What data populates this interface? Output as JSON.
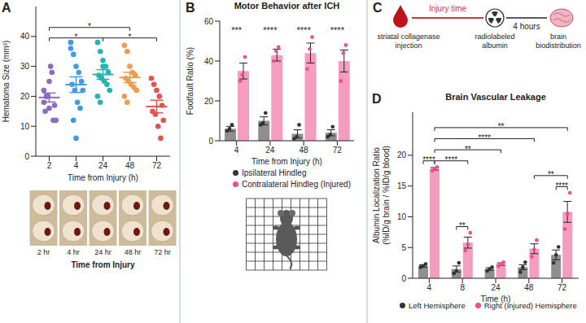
{
  "chart_data": [
    {
      "panel": "A",
      "type": "scatter",
      "y_label": "Hematoma Size (mm³)",
      "x_label": "Time from Injury (h)",
      "categories": [
        "2",
        "4",
        "24",
        "48",
        "72"
      ],
      "colors": [
        "#8b6cc1",
        "#3d9be9",
        "#27b3b3",
        "#f29a4e",
        "#e4534d"
      ],
      "values": [
        [
          22,
          20,
          25,
          28,
          17,
          15,
          20,
          30,
          12,
          12,
          18,
          20,
          16
        ],
        [
          36,
          34,
          30,
          28,
          25,
          24,
          22,
          18,
          16,
          22,
          38,
          12,
          6
        ],
        [
          38,
          35,
          32,
          30,
          28,
          27,
          26,
          25,
          24,
          22,
          20,
          18,
          30
        ],
        [
          37,
          35,
          30,
          28,
          27,
          26,
          25,
          24,
          23,
          22,
          20,
          18
        ],
        [
          26,
          24,
          22,
          20,
          17,
          15,
          14,
          10,
          6,
          12
        ]
      ],
      "mean": [
        19.6,
        23.9,
        27.3,
        26.3,
        16.6
      ],
      "error": [
        1.5,
        2.6,
        1.6,
        1.7,
        2.1
      ],
      "ylim": [
        0,
        50
      ],
      "yticks": [
        0,
        10,
        20,
        30,
        40
      ],
      "significance": [
        {
          "groups": [
            "2",
            "24"
          ],
          "label": "*"
        },
        {
          "groups": [
            "24",
            "72"
          ],
          "label": "*"
        },
        {
          "groups": [
            "2",
            "48"
          ],
          "label": "*"
        }
      ],
      "images": {
        "labels": [
          "2 hr",
          "4 hr",
          "24 hr",
          "48 hr",
          "72 hr"
        ],
        "caption": "Time from Injury"
      }
    },
    {
      "panel": "B",
      "type": "bar",
      "title": "Motor Behavior after ICH",
      "x_label": "Time from Injury (h)",
      "y_label": "Footfault Ratio (%)",
      "categories": [
        "4",
        "24",
        "48",
        "72"
      ],
      "series": [
        {
          "name": "Ipsilateral Hindleg",
          "color": "#333333",
          "values": [
            6,
            10,
            3.5,
            4
          ],
          "error": [
            1.2,
            2,
            2,
            1.5
          ],
          "points": [
            [
              5,
              6,
              8
            ],
            [
              8,
              9,
              14
            ],
            [
              1,
              2,
              8
            ],
            [
              2,
              3,
              7
            ]
          ]
        },
        {
          "name": "Contralateral Hindleg (Injured)",
          "color": "#ee4d8a",
          "values": [
            35,
            43,
            44,
            40
          ],
          "error": [
            4,
            3,
            5,
            5.5
          ],
          "points": [
            [
              30,
              33,
              42
            ],
            [
              40,
              45,
              47
            ],
            [
              36,
              46,
              52
            ],
            [
              30,
              44,
              48
            ]
          ]
        }
      ],
      "ylim": [
        0,
        60
      ],
      "yticks": [
        0,
        20,
        40,
        60
      ],
      "legend": "bottom",
      "significance": [
        {
          "category": "4",
          "label": "***"
        },
        {
          "category": "24",
          "label": "****"
        },
        {
          "category": "48",
          "label": "****"
        },
        {
          "category": "72",
          "label": "****"
        }
      ]
    },
    {
      "panel": "D",
      "type": "bar",
      "title": "Brain Vascular Leakage",
      "x_label": "Time (h)",
      "y_label": [
        "Albumin Localization Ratio",
        "(%ID/g brain / %ID/g blood)"
      ],
      "categories": [
        "4",
        "8",
        "24",
        "48",
        "72"
      ],
      "series": [
        {
          "name": "Left Hemisphere",
          "color": "#333333",
          "values": [
            2.0,
            1.5,
            1.5,
            1.8,
            3.8
          ],
          "error": [
            0.2,
            0.5,
            0.2,
            0.4,
            0.8
          ],
          "points": [
            [
              1.8,
              2.0,
              2.3
            ],
            [
              0.8,
              1.2,
              2.5
            ],
            [
              1.2,
              1.5,
              1.8
            ],
            [
              1.0,
              1.8,
              2.6
            ],
            [
              2.5,
              3.8,
              5.1
            ]
          ]
        },
        {
          "name": "Right (Injured) Hemisphere",
          "color": "#ee4d8a",
          "values": [
            17.8,
            5.8,
            2.3,
            4.8,
            10.8
          ],
          "error": [
            0.2,
            0.9,
            0.2,
            0.8,
            1.7
          ],
          "points": [
            [
              17.5,
              17.8,
              18.1
            ],
            [
              4.5,
              5.5,
              7.4
            ],
            [
              2.0,
              2.3,
              2.6
            ],
            [
              3.5,
              4.7,
              6.2
            ],
            [
              8.0,
              10.5,
              13.9
            ]
          ]
        }
      ],
      "ylim": [
        0,
        27
      ],
      "yticks": [
        0,
        5,
        10,
        15,
        20
      ],
      "legend": "bottom",
      "significance": [
        {
          "from": [
            "4",
            "Left Hemisphere"
          ],
          "to": [
            "4",
            "Right (Injured) Hemisphere"
          ],
          "label": "****"
        },
        {
          "from": [
            "8",
            "Left Hemisphere"
          ],
          "to": [
            "8",
            "Right (Injured) Hemisphere"
          ],
          "label": "**"
        },
        {
          "from": [
            "72",
            "Left Hemisphere"
          ],
          "to": [
            "72",
            "Right (Injured) Hemisphere"
          ],
          "label": "****"
        },
        {
          "from": [
            "48",
            "Right (Injured) Hemisphere"
          ],
          "to": [
            "72",
            "Right (Injured) Hemisphere"
          ],
          "label": "**"
        },
        {
          "from": [
            "4",
            "Right (Injured) Hemisphere"
          ],
          "to": [
            "8",
            "Right (Injured) Hemisphere"
          ],
          "label": "****"
        },
        {
          "from": [
            "4",
            "Right (Injured) Hemisphere"
          ],
          "to": [
            "24",
            "Right (Injured) Hemisphere"
          ],
          "label": "**"
        },
        {
          "from": [
            "4",
            "Right (Injured) Hemisphere"
          ],
          "to": [
            "48",
            "Right (Injured) Hemisphere"
          ],
          "label": "****"
        },
        {
          "from": [
            "4",
            "Right (Injured) Hemisphere"
          ],
          "to": [
            "72",
            "Right (Injured) Hemisphere"
          ],
          "label": "**"
        }
      ]
    }
  ],
  "diagram": {
    "panel": "C",
    "steps": [
      "striatal collagenase injection",
      "radiolabeled albumin",
      "brain biodistribution"
    ],
    "intervals": [
      "Injury time",
      "4 hours"
    ]
  }
}
